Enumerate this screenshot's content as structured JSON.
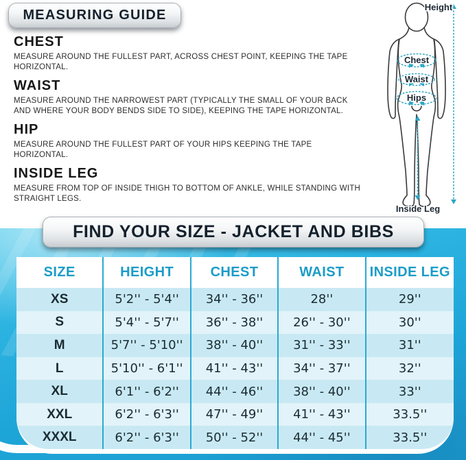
{
  "measuring_guide": {
    "title": "MEASURING GUIDE",
    "sections": [
      {
        "heading": "CHEST",
        "text": "MEASURE AROUND THE FULLEST PART, ACROSS CHEST POINT, KEEPING THE TAPE HORIZONTAL."
      },
      {
        "heading": "WAIST",
        "text": "MEASURE AROUND THE NARROWEST PART (TYPICALLY THE SMALL OF YOUR BACK AND WHERE YOUR BODY BENDS SIDE TO SIDE), KEEPING THE TAPE HORIZONTAL."
      },
      {
        "heading": "HIP",
        "text": "MEASURE AROUND THE FULLEST PART OF YOUR HIPS KEEPING THE TAPE HORIZONTAL."
      },
      {
        "heading": "INSIDE LEG",
        "text": "MEASURE FROM TOP OF INSIDE THIGH TO BOTTOM OF ANKLE, WHILE STANDING WITH STRAIGHT LEGS."
      }
    ]
  },
  "diagram": {
    "labels": {
      "height": "Height",
      "chest": "Chest",
      "waist": "Waist",
      "hips": "Hips",
      "inside_leg": "Inside Leg"
    }
  },
  "size_chart": {
    "title": "FIND YOUR SIZE - JACKET AND BIBS",
    "columns": [
      "SIZE",
      "HEIGHT",
      "CHEST",
      "WAIST",
      "INSIDE LEG"
    ],
    "rows": [
      [
        "XS",
        "5'2'' - 5'4''",
        "34'' - 36''",
        "28''",
        "29''"
      ],
      [
        "S",
        "5'4'' - 5'7''",
        "36'' - 38''",
        "26'' - 30''",
        "30''"
      ],
      [
        "M",
        "5'7'' - 5'10''",
        "38'' - 40''",
        "31'' - 33''",
        "31''"
      ],
      [
        "L",
        "5'10'' - 6'1''",
        "41'' - 43''",
        "34'' - 37''",
        "32''"
      ],
      [
        "XL",
        "6'1'' - 6'2''",
        "44'' - 46''",
        "38'' - 40''",
        "33''"
      ],
      [
        "XXL",
        "6'2'' - 6'3''",
        "47'' - 49''",
        "41'' - 43''",
        "33.5''"
      ],
      [
        "XXXL",
        "6'2'' - 6'3''",
        "50'' - 52''",
        "44'' - 45''",
        "33.5''"
      ]
    ]
  },
  "colors": {
    "water_blue": "#28b0de",
    "header_text": "#1b9cc7",
    "row_dark": "#c8e9f3",
    "row_light": "#e2f3f9",
    "column_separator": "#2aa9d4",
    "pill_text": "#14212c",
    "dotted_teal": "#35aac6"
  }
}
